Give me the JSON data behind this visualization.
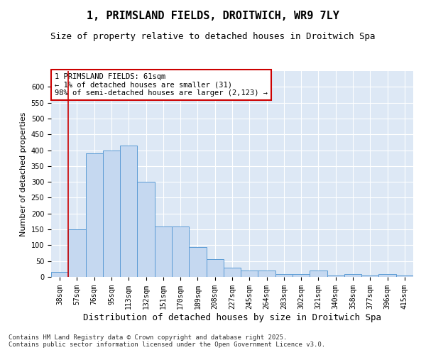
{
  "title1": "1, PRIMSLAND FIELDS, DROITWICH, WR9 7LY",
  "title2": "Size of property relative to detached houses in Droitwich Spa",
  "xlabel": "Distribution of detached houses by size in Droitwich Spa",
  "ylabel": "Number of detached properties",
  "categories": [
    "38sqm",
    "57sqm",
    "76sqm",
    "95sqm",
    "113sqm",
    "132sqm",
    "151sqm",
    "170sqm",
    "189sqm",
    "208sqm",
    "227sqm",
    "245sqm",
    "264sqm",
    "283sqm",
    "302sqm",
    "321sqm",
    "340sqm",
    "358sqm",
    "377sqm",
    "396sqm",
    "415sqm"
  ],
  "values": [
    15,
    150,
    390,
    400,
    415,
    300,
    160,
    160,
    95,
    55,
    30,
    20,
    20,
    10,
    10,
    20,
    5,
    8,
    5,
    8,
    5
  ],
  "bar_color": "#c5d8f0",
  "bar_edge_color": "#5b9bd5",
  "vline_x": 0.5,
  "vline_color": "#cc0000",
  "annotation_text": "1 PRIMSLAND FIELDS: 61sqm\n← 1% of detached houses are smaller (31)\n98% of semi-detached houses are larger (2,123) →",
  "annotation_box_color": "#cc0000",
  "ylim": [
    0,
    650
  ],
  "yticks": [
    0,
    50,
    100,
    150,
    200,
    250,
    300,
    350,
    400,
    450,
    500,
    550,
    600
  ],
  "bg_color": "#dde8f5",
  "footer": "Contains HM Land Registry data © Crown copyright and database right 2025.\nContains public sector information licensed under the Open Government Licence v3.0.",
  "title1_fontsize": 11,
  "title2_fontsize": 9,
  "xlabel_fontsize": 9,
  "ylabel_fontsize": 8,
  "tick_fontsize": 7,
  "annotation_fontsize": 7.5,
  "footer_fontsize": 6.5
}
